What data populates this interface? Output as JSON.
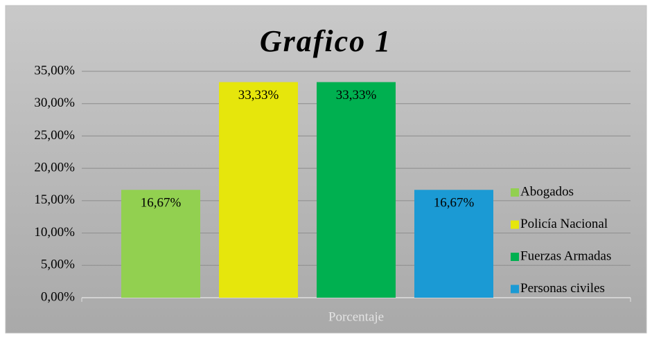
{
  "chart_data": {
    "type": "bar",
    "title": "Grafico 1",
    "categories": [
      "Porcentaje"
    ],
    "series": [
      {
        "name": "Abogados",
        "color": "#92d050",
        "values": [
          16.67
        ],
        "value_labels": [
          "16,67%"
        ]
      },
      {
        "name": "Policía Nacional",
        "color": "#e6e60c",
        "values": [
          33.33
        ],
        "value_labels": [
          "33,33%"
        ]
      },
      {
        "name": "Fuerzas Armadas",
        "color": "#00b050",
        "values": [
          33.33
        ],
        "value_labels": [
          "33,33%"
        ]
      },
      {
        "name": "Personas civiles",
        "color": "#1b9ad4",
        "values": [
          16.67
        ],
        "value_labels": [
          "16,67%"
        ]
      }
    ],
    "ylim": [
      0,
      35
    ],
    "yticks": [
      {
        "value": 0,
        "label": "0,00%"
      },
      {
        "value": 5,
        "label": "5,00%"
      },
      {
        "value": 10,
        "label": "10,00%"
      },
      {
        "value": 15,
        "label": "15,00%"
      },
      {
        "value": 20,
        "label": "20,00%"
      },
      {
        "value": 25,
        "label": "25,00%"
      },
      {
        "value": 30,
        "label": "30,00%"
      },
      {
        "value": 35,
        "label": "35,00%"
      }
    ],
    "grid": true,
    "legend": "right"
  }
}
